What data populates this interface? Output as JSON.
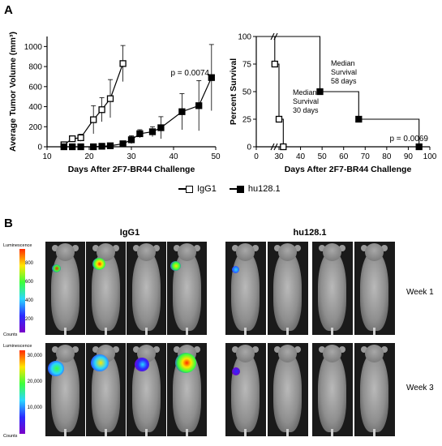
{
  "panels": {
    "a_label": "A",
    "b_label": "B"
  },
  "chart_data": [
    {
      "type": "line",
      "xlabel": "Days After 2F7-BR44 Challenge",
      "ylabel": "Average Tumor Volume (mm³)",
      "xlim": [
        10,
        50
      ],
      "ylim": [
        0,
        1100
      ],
      "xticks": [
        "10",
        "20",
        "30",
        "40",
        "50"
      ],
      "yticks": [
        "0",
        "200",
        "400",
        "600",
        "800",
        "1000"
      ],
      "annotation": "p = 0.0074",
      "series": [
        {
          "name": "IgG1",
          "marker": "open-square",
          "x": [
            14,
            16,
            18,
            21,
            23,
            25,
            28
          ],
          "y": [
            20,
            80,
            90,
            270,
            370,
            480,
            830
          ],
          "err": [
            15,
            30,
            35,
            140,
            120,
            190,
            180
          ]
        },
        {
          "name": "hu128.1",
          "marker": "filled-square",
          "x": [
            14,
            16,
            18,
            21,
            23,
            25,
            28,
            30,
            32,
            35,
            37,
            42,
            46,
            49
          ],
          "y": [
            0,
            0,
            0,
            0,
            5,
            10,
            30,
            70,
            130,
            150,
            190,
            350,
            410,
            690
          ],
          "err": [
            0,
            0,
            0,
            0,
            5,
            8,
            20,
            40,
            40,
            50,
            110,
            180,
            250,
            330
          ]
        }
      ]
    },
    {
      "type": "line",
      "xlabel": "Days After 2F7-BR44 Challenge",
      "ylabel": "Percent Survival",
      "xticks": [
        "0",
        "30",
        "40",
        "50",
        "60",
        "70",
        "80",
        "90",
        "100"
      ],
      "yticks": [
        "0",
        "25",
        "50",
        "75",
        "100"
      ],
      "ylim": [
        0,
        100
      ],
      "annotation": "p = 0.0069",
      "median_igg1": [
        "Median",
        "Survival",
        "30 days"
      ],
      "median_hu": [
        "Median",
        "Survival",
        "58 days"
      ],
      "series": [
        {
          "name": "IgG1",
          "marker": "open-square",
          "steps": [
            [
              0,
              100
            ],
            [
              29,
              100
            ],
            [
              29,
              75
            ],
            [
              30,
              75
            ],
            [
              30,
              25
            ],
            [
              32,
              25
            ],
            [
              32,
              0
            ]
          ],
          "points": [
            [
              29,
              75
            ],
            [
              30,
              25
            ],
            [
              32,
              0
            ]
          ]
        },
        {
          "name": "hu128.1",
          "marker": "filled-square",
          "steps": [
            [
              0,
              100
            ],
            [
              49,
              100
            ],
            [
              49,
              50
            ],
            [
              67,
              50
            ],
            [
              67,
              25
            ],
            [
              95,
              25
            ],
            [
              95,
              0
            ]
          ],
          "points": [
            [
              49,
              50
            ],
            [
              67,
              25
            ],
            [
              95,
              0
            ]
          ]
        }
      ]
    }
  ],
  "legend": [
    {
      "name": "IgG1",
      "style": "open"
    },
    {
      "name": "hu128.1",
      "style": "filled"
    }
  ],
  "imaging": {
    "groups": [
      "IgG1",
      "hu128.1"
    ],
    "weeks": [
      "Week 1",
      "Week 3"
    ],
    "scale_week1": {
      "title": "Luminescence",
      "ticks": [
        "800",
        "600",
        "400",
        "200"
      ],
      "bottom": "Counts"
    },
    "scale_week3": {
      "title": "Luminescence",
      "ticks": [
        "30,000",
        "20,000",
        "10,000"
      ],
      "bottom": "Counts"
    },
    "colors": {
      "hot": "#ff2a00",
      "warm": "#ffe600",
      "mid": "#3cff3c",
      "cool": "#2ad7ff",
      "cold": "#2a2aff",
      "deep": "#7a00c8"
    }
  }
}
